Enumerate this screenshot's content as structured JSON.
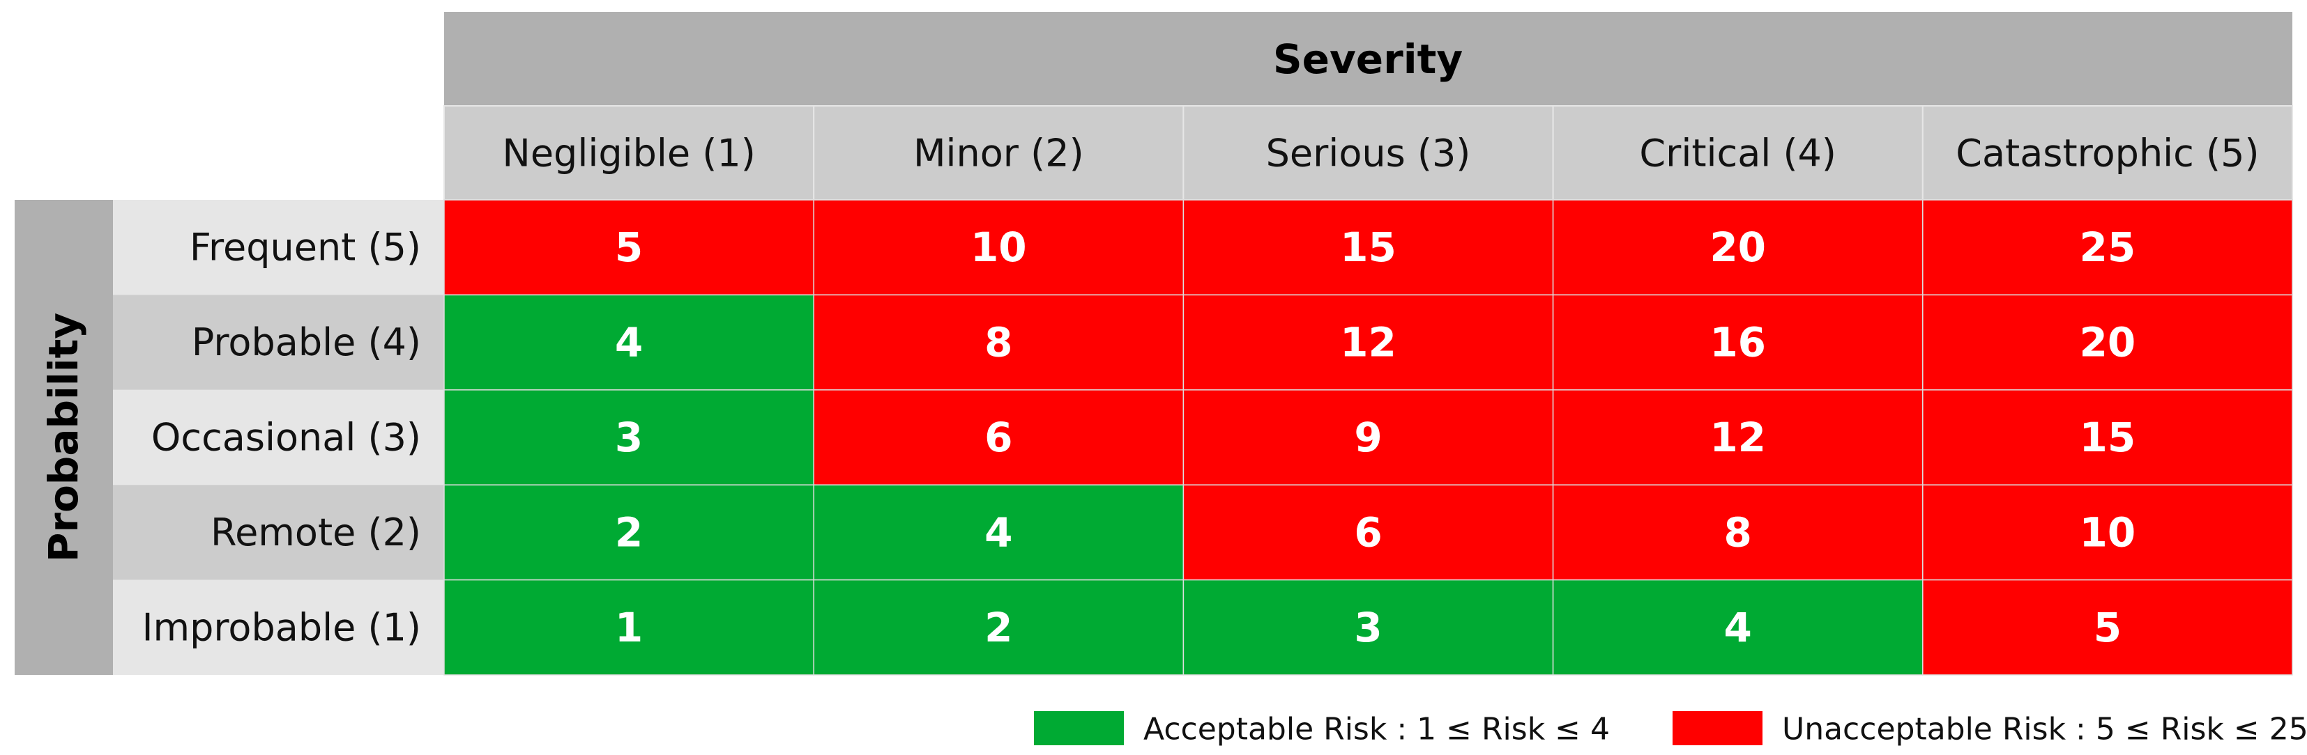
{
  "header": {
    "title": "Severity",
    "columns": [
      "Negligible (1)",
      "Minor (2)",
      "Serious (3)",
      "Critical (4)",
      "Catastrophic (5)"
    ]
  },
  "side": {
    "title": "Probability",
    "rows": [
      "Frequent (5)",
      "Probable (4)",
      "Occasional (3)",
      "Remote (2)",
      "Improbable (1)"
    ]
  },
  "table": {
    "rows": [
      [
        5,
        10,
        15,
        20,
        25
      ],
      [
        4,
        8,
        12,
        16,
        20
      ],
      [
        3,
        6,
        9,
        12,
        15
      ],
      [
        2,
        4,
        6,
        8,
        10
      ],
      [
        1,
        2,
        3,
        4,
        5
      ]
    ],
    "colors": [
      [
        "#ff0000",
        "#ff0000",
        "#ff0000",
        "#ff0000",
        "#ff0000"
      ],
      [
        "#00aa33",
        "#ff0000",
        "#ff0000",
        "#ff0000",
        "#ff0000"
      ],
      [
        "#00aa33",
        "#ff0000",
        "#ff0000",
        "#ff0000",
        "#ff0000"
      ],
      [
        "#00aa33",
        "#00aa33",
        "#ff0000",
        "#ff0000",
        "#ff0000"
      ],
      [
        "#00aa33",
        "#00aa33",
        "#00aa33",
        "#00aa33",
        "#ff0000"
      ]
    ]
  },
  "legend": [
    {
      "label": "Acceptable Risk : 1 ≤ Risk ≤ 4",
      "color": "#00aa33"
    },
    {
      "label": "Unacceptable Risk : 5 ≤ Risk ≤ 25",
      "color": "#ff0000"
    }
  ]
}
